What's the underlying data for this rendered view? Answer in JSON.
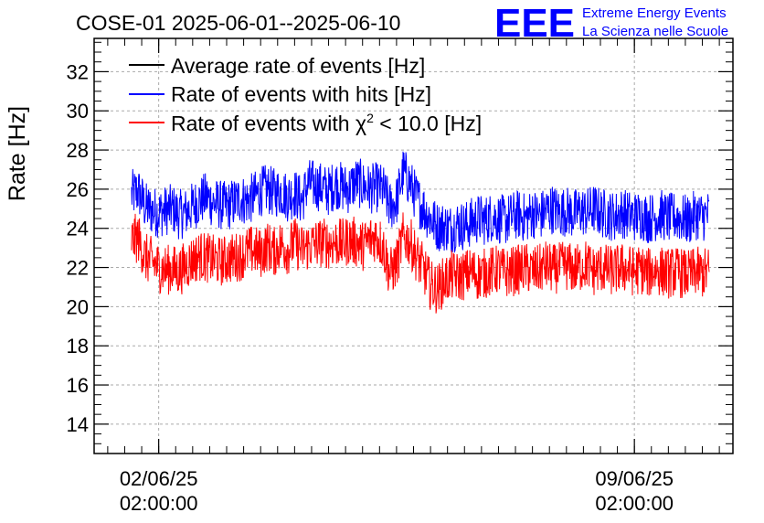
{
  "chart_data": {
    "type": "line",
    "title": "COSE-01 2025-06-01--2025-06-10",
    "ylabel": "Rate [Hz]",
    "xlabel": "",
    "ylim": [
      12.5,
      33.7
    ],
    "xlim_days": [
      0.55,
      9.95
    ],
    "grid": true,
    "legend_position": "top-left",
    "y_ticks": [
      14,
      16,
      18,
      20,
      22,
      24,
      26,
      28,
      30,
      32
    ],
    "x_ticks": [
      {
        "day": 1.5,
        "date": "02/06/25",
        "time": "02:00:00"
      },
      {
        "day": 8.5,
        "date": "09/06/25",
        "time": "02:00:00"
      }
    ],
    "series": [
      {
        "name": "Average rate of events [Hz]",
        "color": "#000000",
        "label_main": "Average rate of events [Hz]",
        "x_start_day": 1.2,
        "x_end_day": 9.6,
        "values": []
      },
      {
        "name": "Rate of events with hits [Hz]",
        "color": "#0000ff",
        "label_main": "Rate of events with hits [Hz]",
        "x_start_day": 1.1,
        "x_end_day": 9.6,
        "values": [
          25.7,
          25.9,
          25.1,
          24.9,
          24.8,
          24.9,
          25.0,
          24.7,
          24.8,
          25.1,
          25.4,
          25.6,
          25.3,
          25.2,
          25.1,
          25.3,
          25.5,
          25.4,
          25.6,
          25.9,
          26.0,
          25.8,
          25.9,
          25.6,
          25.8,
          25.4,
          26.3,
          26.2,
          26.1,
          25.9,
          26.3,
          26.1,
          26.0,
          26.4,
          26.2,
          26.0,
          26.1,
          26.0,
          25.1,
          25.4,
          26.9,
          26.3,
          25.5,
          25.0,
          24.5,
          24.1,
          24.1,
          24.0,
          24.2,
          24.1,
          24.3,
          24.5,
          24.4,
          24.6,
          24.5,
          24.4,
          24.6,
          24.7,
          24.5,
          24.8,
          24.6,
          24.9,
          25.0,
          24.8,
          24.9,
          24.7,
          24.9,
          24.8,
          25.0,
          24.8,
          24.7,
          24.6,
          24.8,
          24.7,
          24.6,
          24.7,
          24.5,
          24.6,
          24.7,
          24.5,
          24.6,
          24.5,
          24.4,
          24.7,
          24.6,
          24.7
        ],
        "amplitude": 1.3
      },
      {
        "name": "Rate of events with χ² < 10.0 [Hz]",
        "color": "#ff0000",
        "label_main": "Rate of events with χ",
        "label_sup": "2",
        "label_end": " < 10.0 [Hz]",
        "x_start_day": 1.1,
        "x_end_day": 9.6,
        "values": [
          23.4,
          23.5,
          22.5,
          22.3,
          22.0,
          21.9,
          21.9,
          21.8,
          22.1,
          22.4,
          22.6,
          22.5,
          22.4,
          22.3,
          22.4,
          22.5,
          22.6,
          22.8,
          22.9,
          22.7,
          23.1,
          22.8,
          23.2,
          22.9,
          23.3,
          22.9,
          23.1,
          23.2,
          23.3,
          23.2,
          23.3,
          23.2,
          23.4,
          23.3,
          23.1,
          23.4,
          23.6,
          23.1,
          21.7,
          22.2,
          23.6,
          23.3,
          22.5,
          21.9,
          21.1,
          20.9,
          21.3,
          21.6,
          21.5,
          21.6,
          21.8,
          21.6,
          21.7,
          21.8,
          21.9,
          21.7,
          21.8,
          21.9,
          22.0,
          21.8,
          21.9,
          22.1,
          21.9,
          22.0,
          22.1,
          21.9,
          22.0,
          22.2,
          21.8,
          22.0,
          21.9,
          21.8,
          22.0,
          21.9,
          21.8,
          21.9,
          21.7,
          21.9,
          21.8,
          21.7,
          21.8,
          21.7,
          21.6,
          21.8,
          21.7,
          21.8
        ],
        "amplitude": 1.3
      }
    ]
  },
  "logo": {
    "mark": "EEE",
    "line1": "Extreme Energy Events",
    "line2": "La Scienza nelle Scuole",
    "color": "#0000ff"
  }
}
